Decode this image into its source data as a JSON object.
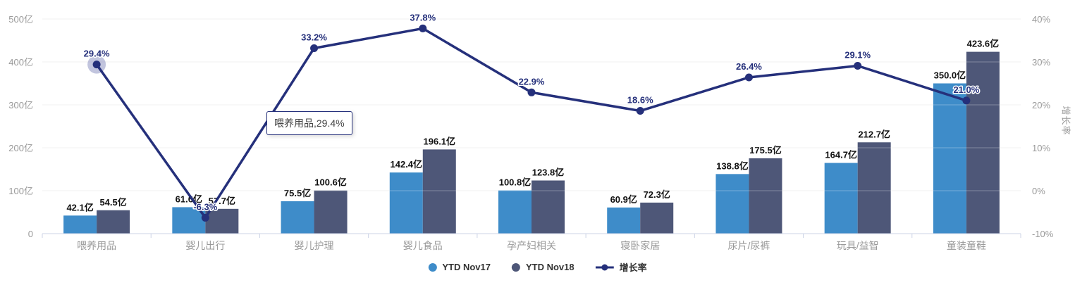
{
  "chart_data": {
    "type": "bar+line combo",
    "categories": [
      "喂养用品",
      "婴儿出行",
      "婴儿护理",
      "婴儿食品",
      "孕产妇相关",
      "寝卧家居",
      "尿片/尿裤",
      "玩具/益智",
      "童装童鞋"
    ],
    "series": [
      {
        "name": "YTD Nov17",
        "type": "bar",
        "axis": "left",
        "unit": "亿",
        "color": "#3e8cc9",
        "values": [
          42.1,
          61.6,
          75.5,
          142.4,
          100.8,
          60.9,
          138.8,
          164.7,
          350.0
        ]
      },
      {
        "name": "YTD Nov18",
        "type": "bar",
        "axis": "left",
        "unit": "亿",
        "color": "#4e5778",
        "values": [
          54.5,
          57.7,
          100.6,
          196.1,
          123.8,
          72.3,
          175.5,
          212.7,
          423.6
        ]
      },
      {
        "name": "增长率",
        "type": "line",
        "axis": "right",
        "unit": "%",
        "color": "#25307b",
        "values": [
          29.4,
          -6.3,
          33.2,
          37.8,
          22.9,
          18.6,
          26.4,
          29.1,
          21.0
        ]
      }
    ],
    "y_left": {
      "min": 0,
      "max": 500,
      "ticks": [
        "500亿",
        "400亿",
        "300亿",
        "200亿",
        "100亿",
        "0"
      ]
    },
    "y_right": {
      "min": -10,
      "max": 40,
      "ticks": [
        "40%",
        "30%",
        "20%",
        "10%",
        "0%",
        "-10%"
      ],
      "title": "增长率"
    },
    "legend": [
      "YTD Nov17",
      "YTD Nov18",
      "增长率"
    ],
    "grid_on": true,
    "highlight": {
      "series": "增长率",
      "category_index": 0
    }
  },
  "tooltip": {
    "text": "喂养用品,29.4%"
  },
  "colors": {
    "bar1": "#3e8cc9",
    "bar2": "#4e5778",
    "line": "#25307b",
    "grid": "#ececec",
    "axis_line": "#ccd3e6",
    "axis_text": "#999999",
    "bar_label": "#111111",
    "halo": "rgba(80,90,160,0.35)",
    "tooltip_border": "#25307b"
  }
}
